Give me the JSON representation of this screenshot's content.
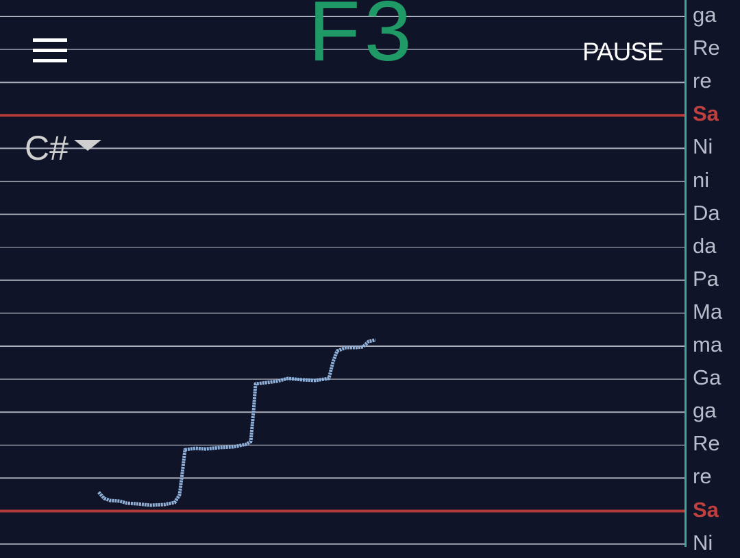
{
  "header": {
    "note": "F3",
    "pause_label": "PAUSE"
  },
  "key_selector": {
    "value": "C#"
  },
  "scale_labels": [
    {
      "text": "ga",
      "tonic": false
    },
    {
      "text": "Re",
      "tonic": false
    },
    {
      "text": "re",
      "tonic": false
    },
    {
      "text": "Sa",
      "tonic": true
    },
    {
      "text": "Ni",
      "tonic": false
    },
    {
      "text": "ni",
      "tonic": false
    },
    {
      "text": "Da",
      "tonic": false
    },
    {
      "text": "da",
      "tonic": false
    },
    {
      "text": "Pa",
      "tonic": false
    },
    {
      "text": "Ma",
      "tonic": false
    },
    {
      "text": "ma",
      "tonic": false
    },
    {
      "text": "Ga",
      "tonic": false
    },
    {
      "text": "ga",
      "tonic": false
    },
    {
      "text": "Re",
      "tonic": false
    },
    {
      "text": "re",
      "tonic": false
    },
    {
      "text": "Sa",
      "tonic": true
    },
    {
      "text": "Ni",
      "tonic": false
    }
  ],
  "colors": {
    "background": "#0f1428",
    "grid_line": "#c9ccd8",
    "tonic_line": "#b23a3a",
    "pitch_trace": "#8fb0d8",
    "note_label": "#1f9a66",
    "divider": "#3aa89a"
  },
  "icons": {
    "menu": "hamburger-icon",
    "dropdown": "caret-down-icon"
  }
}
